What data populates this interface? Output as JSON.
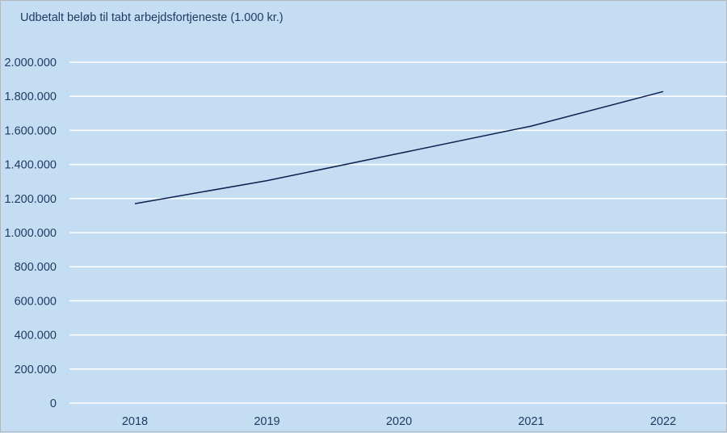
{
  "chart_data": {
    "type": "line",
    "title": "Udbetalt beløb til tabt arbejdsfortjeneste (1.000 kr.)",
    "xlabel": "",
    "ylabel": "",
    "categories": [
      "2018",
      "2019",
      "2020",
      "2021",
      "2022"
    ],
    "series": [
      {
        "values": [
          1170000,
          1305000,
          1465000,
          1625000,
          1828000
        ]
      }
    ],
    "ylim": [
      0,
      2000000
    ],
    "yticks": [
      0,
      200000,
      400000,
      600000,
      800000,
      1000000,
      1200000,
      1400000,
      1600000,
      1800000,
      2000000
    ],
    "ytick_labels": [
      "0",
      "200.000",
      "400.000",
      "600.000",
      "800.000",
      "1.000.000",
      "1.200.000",
      "1.400.000",
      "1.600.000",
      "1.800.000",
      "2.000.000"
    ],
    "grid": true,
    "legend": "none",
    "colors": {
      "background": "#c5ddf2",
      "gridline": "#ffffff",
      "line": "#0d1f4f",
      "text": "#1f3b63"
    }
  }
}
